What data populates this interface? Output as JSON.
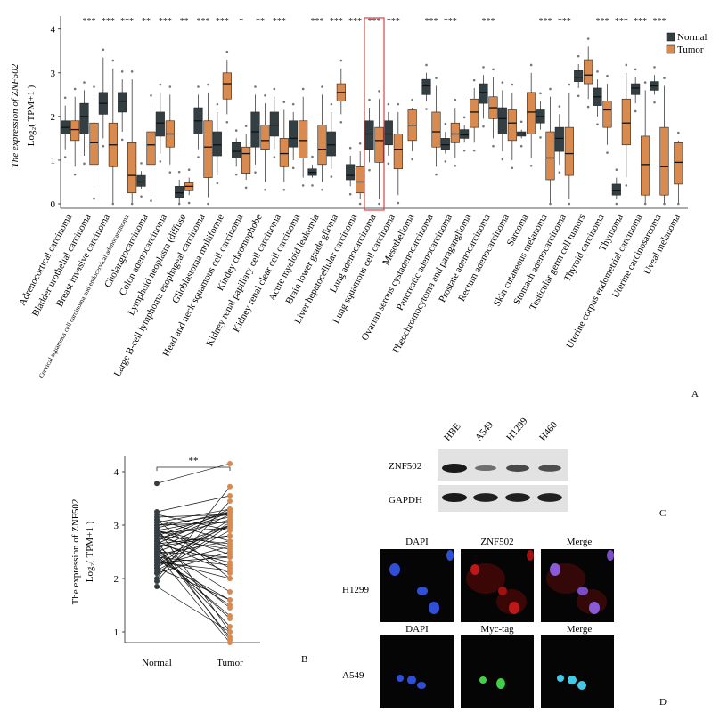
{
  "colors": {
    "normal": "#343f44",
    "tumor": "#d88a4f",
    "highlight": "#e04040",
    "blot_bg": "#e2e2e2",
    "band": "#1a1a1a",
    "dapi": "#2f4fd6",
    "znf": "#c01818",
    "myc": "#3fd048",
    "merge_h": "#8a5ad8",
    "merge_a": "#45c8e8"
  },
  "panelA": {
    "panel_label": "A",
    "ylabel_line1": "The expression of ZNF502",
    "ylabel_line2": "Log₂( TPM+1 )",
    "legend": {
      "normal": "Normal",
      "tumor": "Tumor"
    },
    "chart_data": {
      "type": "boxplot",
      "ylim": [
        0,
        4.3
      ],
      "yticks": [
        0,
        1,
        2,
        3,
        4
      ],
      "highlighted_category": "Lung adenocarcinoma",
      "categories": [
        {
          "name": "Adrenocortical carcinoma",
          "sig": "",
          "normal": [
            1.25,
            1.6,
            1.75,
            1.9,
            2.25
          ],
          "tumor": [
            0.85,
            1.45,
            1.7,
            1.9,
            2.45
          ]
        },
        {
          "name": "Bladder urothelial carcinoma",
          "sig": "***",
          "normal": [
            1.1,
            1.6,
            2.0,
            2.3,
            2.6
          ],
          "tumor": [
            0.3,
            0.9,
            1.4,
            1.85,
            2.5
          ]
        },
        {
          "name": "Breast invasive carcinoma",
          "sig": "***",
          "normal": [
            1.5,
            2.05,
            2.3,
            2.55,
            3.35
          ],
          "tumor": [
            0.0,
            0.85,
            1.35,
            1.85,
            3.1
          ]
        },
        {
          "name": "Cervical squamous cell carcinoma and endocervical adenocarcinoma",
          "sig": "***",
          "normal": [
            1.65,
            2.1,
            2.35,
            2.55,
            2.85
          ],
          "tumor": [
            0.0,
            0.25,
            0.65,
            1.4,
            2.85
          ]
        },
        {
          "name": "Cholangiocarcinoma",
          "sig": "**",
          "normal": [
            0.35,
            0.4,
            0.5,
            0.65,
            0.75
          ],
          "tumor": [
            0.25,
            0.9,
            1.35,
            1.65,
            2.3
          ]
        },
        {
          "name": "Colon adenocarcinoma",
          "sig": "***",
          "normal": [
            1.15,
            1.55,
            1.85,
            2.1,
            2.55
          ],
          "tumor": [
            0.9,
            1.3,
            1.6,
            1.9,
            2.5
          ]
        },
        {
          "name": "Lymphoid neoplasm (diffuse",
          "sig": "**",
          "normal": [
            0.0,
            0.15,
            0.25,
            0.4,
            0.55
          ],
          "tumor": [
            0.2,
            0.3,
            0.4,
            0.48,
            0.6
          ]
        },
        {
          "name": "Large B-cell lymphoma esophageal carcinoma",
          "sig": "***",
          "normal": [
            1.25,
            1.6,
            1.9,
            2.2,
            2.5
          ],
          "tumor": [
            0.15,
            0.6,
            1.3,
            1.9,
            2.55
          ]
        },
        {
          "name": "Glioblastoma multiforme",
          "sig": "***",
          "normal": [
            0.65,
            1.1,
            1.35,
            1.65,
            2.1
          ],
          "tumor": [
            2.05,
            2.4,
            2.75,
            3.0,
            3.3
          ]
        },
        {
          "name": "Head and neck squamous cell carcinoma",
          "sig": "*",
          "normal": [
            0.85,
            1.05,
            1.2,
            1.4,
            1.5
          ],
          "tumor": [
            0.55,
            0.7,
            1.15,
            1.3,
            1.6
          ]
        },
        {
          "name": "Kindey chromophobe",
          "sig": "**",
          "normal": [
            0.9,
            1.3,
            1.65,
            2.1,
            2.5
          ],
          "tumor": [
            0.5,
            1.25,
            1.45,
            1.8,
            2.3
          ]
        },
        {
          "name": "Kidney renal papillary cell carcinoma",
          "sig": "***",
          "normal": [
            1.25,
            1.55,
            1.8,
            2.1,
            2.45
          ],
          "tumor": [
            0.5,
            0.85,
            1.15,
            1.5,
            2.15
          ]
        },
        {
          "name": "Kidney renal clear cell carcinoma",
          "sig": "",
          "normal": [
            1.0,
            1.3,
            1.5,
            1.9,
            2.1
          ],
          "tumor": [
            0.6,
            1.05,
            1.45,
            1.9,
            2.45
          ]
        },
        {
          "name": "Acute myeloid leukemia",
          "sig": "***",
          "normal": [
            0.6,
            0.65,
            0.72,
            0.8,
            0.9
          ],
          "tumor": [
            0.5,
            0.9,
            1.25,
            1.8,
            2.5
          ]
        },
        {
          "name": "Brain lower grade glioma",
          "sig": "***",
          "normal": [
            0.8,
            1.1,
            1.35,
            1.65,
            2.1
          ],
          "tumor": [
            2.05,
            2.35,
            2.55,
            2.75,
            3.1
          ]
        },
        {
          "name": "Liver hepatocellular carcinoma",
          "sig": "***",
          "normal": [
            0.4,
            0.55,
            0.65,
            0.9,
            1.1
          ],
          "tumor": [
            0.1,
            0.25,
            0.5,
            0.85,
            1.2
          ]
        },
        {
          "name": "Lung adenocarcinoma",
          "sig": "***",
          "normal": [
            0.95,
            1.25,
            1.6,
            1.9,
            2.2
          ],
          "tumor": [
            0.1,
            0.95,
            1.45,
            1.75,
            2.4
          ]
        },
        {
          "name": "Lung squamous cell carcinoma",
          "sig": "***",
          "normal": [
            1.1,
            1.35,
            1.6,
            1.9,
            2.1
          ],
          "tumor": [
            0.2,
            0.8,
            1.25,
            1.6,
            2.1
          ]
        },
        {
          "name": "Mesothelioma",
          "sig": "",
          "normal": null,
          "tumor": [
            1.2,
            1.45,
            1.8,
            2.15,
            2.2
          ]
        },
        {
          "name": "Ovarian serous cystadenocarcinoma",
          "sig": "***",
          "normal": [
            2.35,
            2.5,
            2.7,
            2.85,
            3.0
          ],
          "tumor": [
            0.85,
            1.3,
            1.65,
            2.1,
            2.7
          ]
        },
        {
          "name": "Pancreatic adenocarcinoma",
          "sig": "***",
          "normal": [
            1.15,
            1.25,
            1.35,
            1.5,
            1.65
          ],
          "tumor": [
            1.05,
            1.4,
            1.6,
            1.85,
            2.2
          ]
        },
        {
          "name": "Pheochromocytoma and paraganglioma",
          "sig": "",
          "normal": [
            1.4,
            1.5,
            1.58,
            1.7,
            1.8
          ],
          "tumor": [
            1.4,
            1.75,
            2.1,
            2.4,
            2.65
          ]
        },
        {
          "name": "Prostate adenocarcinoma",
          "sig": "***",
          "normal": [
            1.95,
            2.3,
            2.55,
            2.75,
            2.95
          ],
          "tumor": [
            1.5,
            1.95,
            2.2,
            2.45,
            2.9
          ]
        },
        {
          "name": "Rectum adenocarcinoma",
          "sig": "",
          "normal": [
            1.2,
            1.6,
            1.95,
            2.2,
            2.6
          ],
          "tumor": [
            1.0,
            1.45,
            1.85,
            2.15,
            2.55
          ]
        },
        {
          "name": "Sarcoma",
          "sig": "",
          "normal": [
            1.5,
            1.55,
            1.6,
            1.65,
            1.7
          ],
          "tumor": [
            1.05,
            1.6,
            2.1,
            2.55,
            3.0
          ]
        },
        {
          "name": "Skin cutaneous melanoma",
          "sig": "***",
          "normal": [
            1.7,
            1.85,
            2.0,
            2.15,
            2.35
          ],
          "tumor": [
            0.0,
            0.55,
            1.05,
            1.65,
            2.45
          ]
        },
        {
          "name": "Stomach adenocarcinoma",
          "sig": "***",
          "normal": [
            0.9,
            1.2,
            1.5,
            1.75,
            2.05
          ],
          "tumor": [
            0.1,
            0.65,
            1.15,
            1.75,
            2.55
          ]
        },
        {
          "name": "Testicular germ cell tumors",
          "sig": "",
          "normal": [
            2.65,
            2.8,
            2.9,
            3.05,
            3.2
          ],
          "tumor": [
            2.4,
            2.75,
            2.95,
            3.3,
            3.6
          ]
        },
        {
          "name": "Thyroid carcinoma",
          "sig": "***",
          "normal": [
            2.0,
            2.25,
            2.45,
            2.65,
            2.85
          ],
          "tumor": [
            1.35,
            1.75,
            2.15,
            2.35,
            2.75
          ]
        },
        {
          "name": "Thymoma",
          "sig": "***",
          "normal": [
            0.1,
            0.2,
            0.3,
            0.45,
            0.6
          ],
          "tumor": [
            0.6,
            1.35,
            1.85,
            2.4,
            3.0
          ]
        },
        {
          "name": "Uterine corpus endometrial carcinoma",
          "sig": "***",
          "normal": [
            2.3,
            2.5,
            2.65,
            2.75,
            2.9
          ],
          "tumor": [
            0.0,
            0.2,
            0.9,
            1.55,
            2.6
          ]
        },
        {
          "name": "Uterine carcinosarcoma",
          "sig": "***",
          "normal": [
            2.5,
            2.6,
            2.7,
            2.8,
            2.95
          ],
          "tumor": [
            0.0,
            0.2,
            0.85,
            1.75,
            2.7
          ]
        },
        {
          "name": "Uveal melanoma",
          "sig": "",
          "normal": null,
          "tumor": [
            0.0,
            0.45,
            0.95,
            1.4,
            1.45
          ]
        }
      ]
    }
  },
  "panelB": {
    "panel_label": "B",
    "ylabel_line1": "The expression of ZNF502",
    "ylabel_line2": "Log₂( TPM+1 )",
    "chart_data": {
      "type": "paired-line",
      "categories": [
        "Normal",
        "Tumor"
      ],
      "ylim": [
        0.8,
        4.3
      ],
      "yticks": [
        1,
        2,
        3,
        4
      ],
      "significance": "**",
      "pairs": [
        [
          2.55,
          3.2
        ],
        [
          2.7,
          3.3
        ],
        [
          3.2,
          2.9
        ],
        [
          2.2,
          1.6
        ],
        [
          2.9,
          2.6
        ],
        [
          2.45,
          1.3
        ],
        [
          3.0,
          3.2
        ],
        [
          2.65,
          2.8
        ],
        [
          2.35,
          2.0
        ],
        [
          2.8,
          3.25
        ],
        [
          2.1,
          2.5
        ],
        [
          2.6,
          0.9
        ],
        [
          3.1,
          2.7
        ],
        [
          2.4,
          1.5
        ],
        [
          2.75,
          3.1
        ],
        [
          2.95,
          3.25
        ],
        [
          2.3,
          2.4
        ],
        [
          2.55,
          1.1
        ],
        [
          2.85,
          2.2
        ],
        [
          2.5,
          3.0
        ],
        [
          2.15,
          2.9
        ],
        [
          3.05,
          3.3
        ],
        [
          2.45,
          0.8
        ],
        [
          2.7,
          2.1
        ],
        [
          2.35,
          3.0
        ],
        [
          2.9,
          2.45
        ],
        [
          2.6,
          1.75
        ],
        [
          2.25,
          3.1
        ],
        [
          3.15,
          3.2
        ],
        [
          2.5,
          1.25
        ],
        [
          2.8,
          2.65
        ],
        [
          2.4,
          2.25
        ],
        [
          2.65,
          3.25
        ],
        [
          2.95,
          1.0
        ],
        [
          2.2,
          3.05
        ],
        [
          2.75,
          2.55
        ],
        [
          3.0,
          3.05
        ],
        [
          2.3,
          2.15
        ],
        [
          2.55,
          1.45
        ],
        [
          2.85,
          2.95
        ],
        [
          2.45,
          2.7
        ],
        [
          2.65,
          2.3
        ],
        [
          2.1,
          3.0
        ],
        [
          2.9,
          3.15
        ],
        [
          2.35,
          1.6
        ],
        [
          2.6,
          2.8
        ],
        [
          3.1,
          2.0
        ],
        [
          2.5,
          2.4
        ],
        [
          2.7,
          0.85
        ],
        [
          2.25,
          2.6
        ],
        [
          3.78,
          4.15
        ],
        [
          1.85,
          1.0
        ],
        [
          2.0,
          3.72
        ],
        [
          3.25,
          3.55
        ],
        [
          1.95,
          3.45
        ]
      ]
    }
  },
  "panelC": {
    "panel_label": "C",
    "lanes": [
      "HBE",
      "A549",
      "H1299",
      "H460"
    ],
    "rows": [
      {
        "label": "ZNF502",
        "intensity": [
          1.0,
          0.35,
          0.65,
          0.6
        ]
      },
      {
        "label": "GAPDH",
        "intensity": [
          1.0,
          0.95,
          0.95,
          0.95
        ]
      }
    ]
  },
  "panelD": {
    "panel_label": "D",
    "rows": [
      {
        "cell_line": "H1299",
        "headers": [
          "DAPI",
          "ZNF502",
          "Merge"
        ]
      },
      {
        "cell_line": "A549",
        "headers": [
          "DAPI",
          "Myc-tag",
          "Merge"
        ]
      }
    ]
  }
}
